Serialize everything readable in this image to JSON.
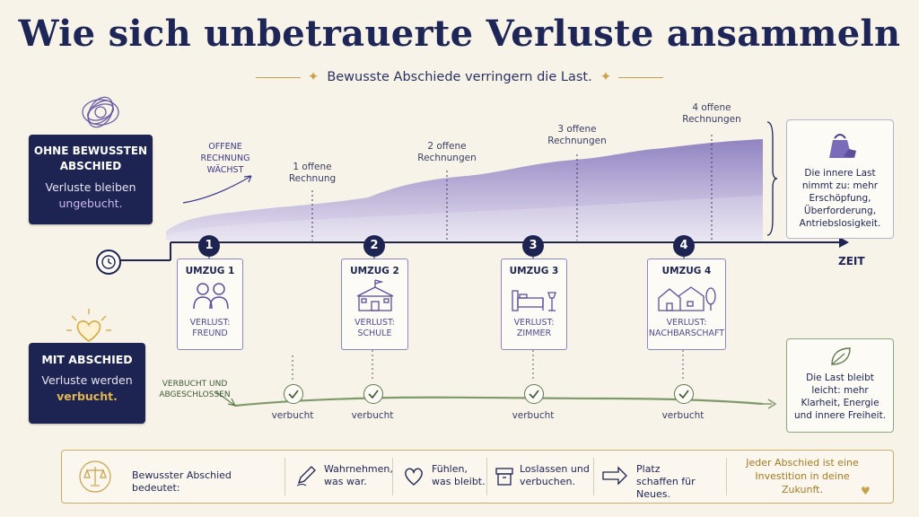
{
  "title": "Wie sich unbetrauerte Verluste ansammeln",
  "subtitle": "Bewusste Abschiede verringern die Last.",
  "without_box": {
    "heading": "OHNE BEWUSSTEN ABSCHIED",
    "text_prefix": "Verluste bleiben",
    "text_highlight": "ungebucht."
  },
  "with_box": {
    "heading": "MIT ABSCHIED",
    "text_prefix": "Verluste werden",
    "text_highlight": "verbucht."
  },
  "open_bill_growing": "OFFENE RECHNUNG WÄCHST",
  "open_bills": [
    "1 offene Rechnung",
    "2 offene Rechnungen",
    "3 offene Rechnungen",
    "4 offene Rechnungen"
  ],
  "burden_levels": [
    1,
    2,
    3,
    4
  ],
  "time_label": "ZEIT",
  "steps": [
    {
      "number": "1",
      "title": "UMZUG 1",
      "loss_label": "VERLUST:",
      "loss": "FREUND",
      "icon": "people-icon"
    },
    {
      "number": "2",
      "title": "UMZUG 2",
      "loss_label": "VERLUST:",
      "loss": "SCHULE",
      "icon": "school-icon"
    },
    {
      "number": "3",
      "title": "UMZUG 3",
      "loss_label": "VERLUST:",
      "loss": "ZIMMER",
      "icon": "bedroom-icon"
    },
    {
      "number": "4",
      "title": "UMZUG 4",
      "loss_label": "VERLUST:",
      "loss": "NACHBARSCHAFT",
      "icon": "neighborhood-icon"
    }
  ],
  "burden_box": "Die innere Last nimmt zu: mehr Erschöpfung, Überforderung, Antriebslosigkeit.",
  "light_box": "Die Last bleibt leicht: mehr Klarheit, Energie und innere Freiheit.",
  "booked_closed": "VERBUCHT UND ABGESCHLOSSEN",
  "booked": [
    "verbucht",
    "verbucht",
    "verbucht",
    "verbucht"
  ],
  "bottom": {
    "intro": "Bewusster Abschied bedeutet:",
    "items": [
      {
        "text": "Wahrnehmen, was war.",
        "icon": "pen-icon"
      },
      {
        "text": "Fühlen, was bleibt.",
        "icon": "heart-icon"
      },
      {
        "text": "Loslassen und verbuchen.",
        "icon": "box-icon"
      },
      {
        "text": "Platz schaffen für Neues.",
        "icon": "arrow-icon"
      }
    ],
    "closing": "Jeder Abschied ist eine Investition in deine Zukunft."
  },
  "colors": {
    "navy": "#1d2452",
    "purple": "#8a7cc4",
    "gold": "#c9a14a",
    "green": "#5f7a4d",
    "background": "#f8f3e8"
  }
}
